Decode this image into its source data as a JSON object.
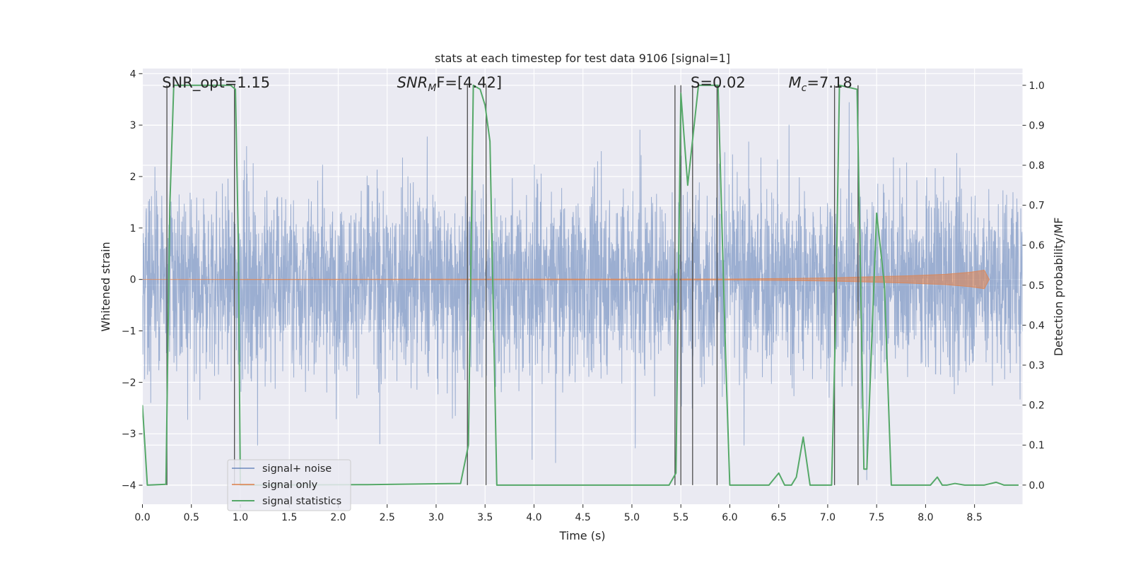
{
  "chart_data": {
    "type": "line",
    "title": "stats at each timestep for test data 9106 [signal=1]",
    "xlabel": "Time (s)",
    "ylabel": "Whitened strain",
    "ylabel_right": "Detection probability/MF",
    "xlim": [
      0.0,
      8.99
    ],
    "ylim": [
      -4.37,
      4.1
    ],
    "ylim_right": [
      -0.048,
      1.042
    ],
    "grid": true,
    "legend_placement": "lower-left",
    "x_ticks": [
      "0.0",
      "0.5",
      "1.0",
      "1.5",
      "2.0",
      "2.5",
      "3.0",
      "3.5",
      "4.0",
      "4.5",
      "5.0",
      "5.5",
      "6.0",
      "6.5",
      "7.0",
      "7.5",
      "8.0",
      "8.5"
    ],
    "y_ticks_left": [
      "−4",
      "−3",
      "−2",
      "−1",
      "0",
      "1",
      "2",
      "3",
      "4"
    ],
    "y_ticks_right": [
      "0.0",
      "0.1",
      "0.2",
      "0.3",
      "0.4",
      "0.5",
      "0.6",
      "0.7",
      "0.8",
      "0.9",
      "1.0"
    ],
    "annotations": [
      {
        "text": "SNR_opt=1.15",
        "x": 0.2
      },
      {
        "text": "SNR",
        "sub": "M",
        "tail": "F=[4.42]",
        "x": 2.6
      },
      {
        "text": "S=0.02",
        "x": 5.6
      },
      {
        "text": "M",
        "sub": "c",
        "tail": "=7.18",
        "x": 6.6
      }
    ],
    "series": [
      {
        "name": "signal+ noise",
        "color": "#4c72b0",
        "description": "whitened strain, noise dominated, envelope approx ±1.8 with spikes to about ±3.5"
      },
      {
        "name": "signal only",
        "color": "#dd8452",
        "x": [
          0.0,
          6.0,
          6.6,
          7.0,
          7.4,
          7.8,
          8.2,
          8.45,
          8.6,
          8.65
        ],
        "amplitude": [
          0.0,
          0.01,
          0.02,
          0.03,
          0.05,
          0.07,
          0.1,
          0.14,
          0.18,
          0.0
        ]
      },
      {
        "name": "signal statistics",
        "color": "#55a868",
        "axis": "right",
        "x": [
          0.0,
          0.05,
          0.24,
          0.28,
          0.32,
          0.9,
          0.95,
          0.98,
          1.0,
          1.05,
          2.3,
          3.25,
          3.33,
          3.38,
          3.45,
          3.5,
          3.55,
          3.62,
          3.68,
          5.38,
          5.45,
          5.5,
          5.57,
          5.68,
          5.88,
          5.96,
          6.0,
          6.4,
          6.5,
          6.56,
          6.63,
          6.68,
          6.75,
          6.82,
          6.9,
          7.04,
          7.08,
          7.12,
          7.3,
          7.33,
          7.37,
          7.4,
          7.5,
          7.58,
          7.65,
          7.7,
          8.05,
          8.12,
          8.17,
          8.22,
          8.3,
          8.4,
          8.6,
          8.72,
          8.8,
          8.95
        ],
        "values": [
          0.2,
          0.0,
          0.002,
          0.7,
          1.0,
          1.0,
          0.99,
          0.6,
          0.0,
          0.0,
          0.001,
          0.004,
          0.1,
          1.0,
          0.99,
          0.95,
          0.86,
          0.0,
          0.0,
          0.0,
          0.03,
          0.98,
          0.75,
          1.0,
          1.0,
          0.3,
          0.0,
          0.0,
          0.03,
          0.0,
          0.0,
          0.02,
          0.12,
          0.0,
          0.0,
          0.0,
          0.4,
          1.0,
          0.99,
          0.6,
          0.04,
          0.04,
          0.68,
          0.5,
          0.0,
          0.0,
          0.0,
          0.02,
          0.0,
          0.0,
          0.004,
          0.0,
          0.0,
          0.007,
          0.0,
          0.0
        ]
      }
    ],
    "vertical_lines_x": [
      0.25,
      0.94,
      3.32,
      3.51,
      5.44,
      5.5,
      5.62,
      5.87,
      7.07,
      7.31
    ]
  }
}
